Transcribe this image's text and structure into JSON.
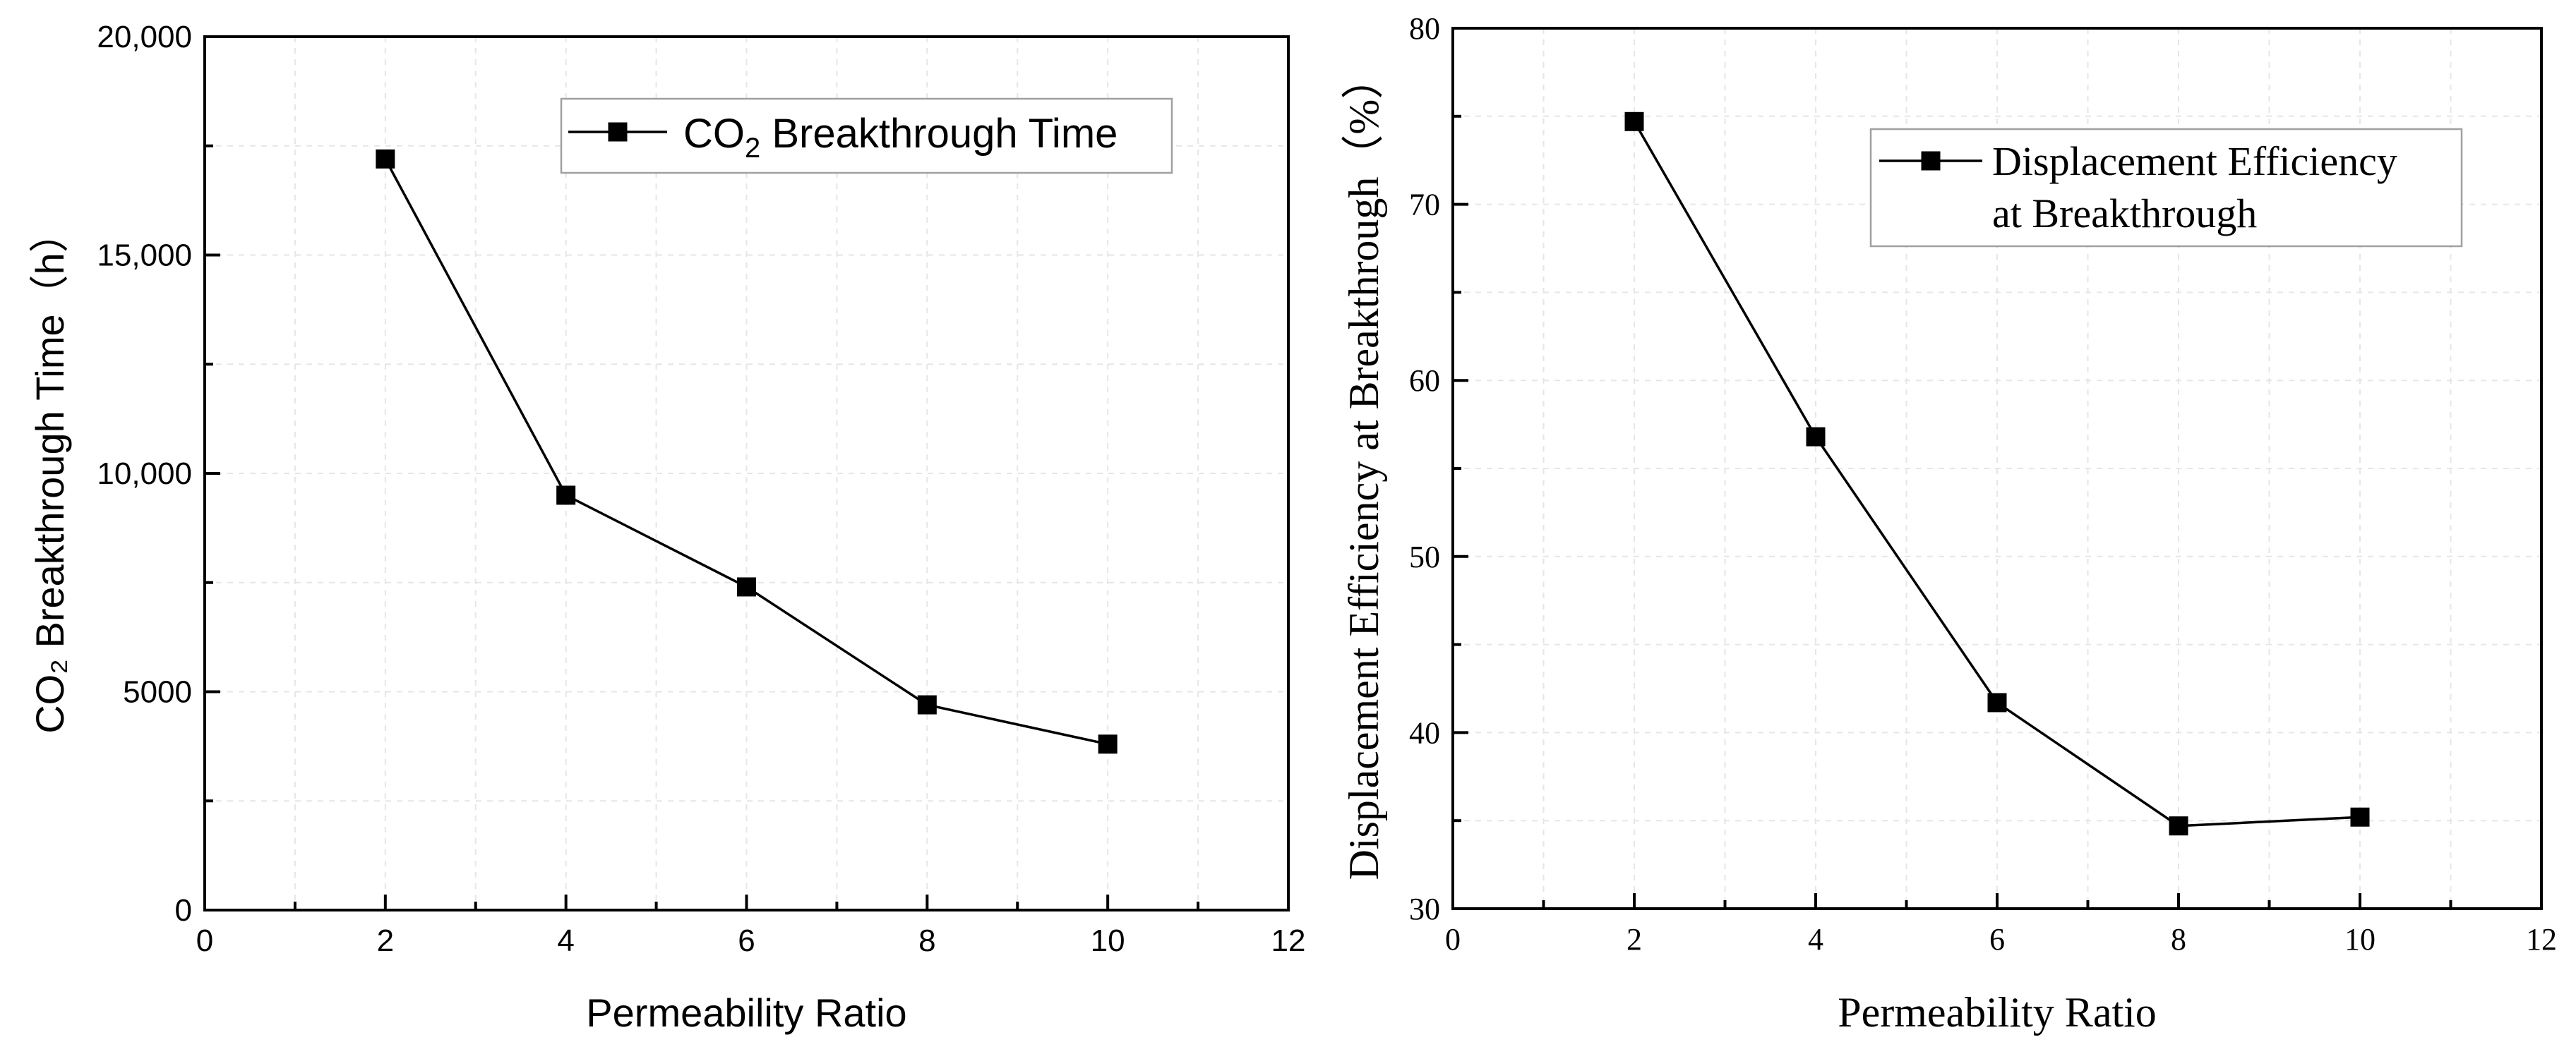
{
  "chart_data": [
    {
      "type": "line",
      "title": "",
      "xlabel": "Permeability Ratio",
      "ylabel": "CO₂  Breakthrough Time（h）",
      "xlim": [
        0,
        12
      ],
      "ylim": [
        0,
        20000
      ],
      "xticks": [
        "0",
        "2",
        "4",
        "6",
        "8",
        "10",
        "12"
      ],
      "yticks": [
        "0",
        "5000",
        "10,000",
        "15,000",
        "20,000"
      ],
      "grid": true,
      "legend_position": "top-right",
      "series": [
        {
          "name": "CO2 Breakthrough Time",
          "legend_parts": {
            "main": "CO",
            "sub": "2",
            "rest": " Breakthrough Time"
          },
          "marker": "square",
          "x": [
            2,
            4,
            6,
            8,
            10
          ],
          "values": [
            17200,
            9500,
            7400,
            4700,
            3800
          ]
        }
      ]
    },
    {
      "type": "line",
      "title": "",
      "xlabel": "Permeability Ratio",
      "ylabel": "Displacement Efficiency at Breakthrough（%）",
      "xlim": [
        0,
        12
      ],
      "ylim": [
        30,
        80
      ],
      "xticks": [
        "0",
        "2",
        "4",
        "6",
        "8",
        "10",
        "12"
      ],
      "yticks": [
        "30",
        "40",
        "50",
        "60",
        "70",
        "80"
      ],
      "grid": true,
      "legend_position": "top-right",
      "series": [
        {
          "name": "Displacement Efficiency at Breakthrough",
          "legend_lines": [
            "Displacement Efficiency",
            "at Breakthrough"
          ],
          "marker": "square",
          "x": [
            2,
            4,
            6,
            8,
            10
          ],
          "values": [
            74.7,
            56.8,
            41.7,
            34.7,
            35.2
          ]
        }
      ]
    }
  ]
}
